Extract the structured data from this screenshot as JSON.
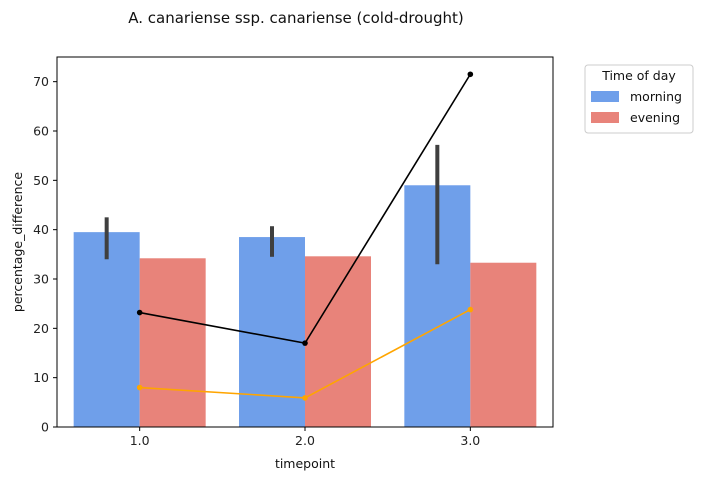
{
  "chart_data": {
    "type": "bar",
    "title": "A. canariense ssp. canariense (cold-drought)",
    "xlabel": "timepoint",
    "ylabel": "percentage_difference",
    "categories": [
      "1.0",
      "2.0",
      "3.0"
    ],
    "ylim": [
      0,
      75
    ],
    "yticks": [
      0,
      10,
      20,
      30,
      40,
      50,
      60,
      70
    ],
    "grid": false,
    "legend": {
      "title": "Time of day",
      "placement": "outside-top-right"
    },
    "series": [
      {
        "name": "morning",
        "values": [
          39.5,
          38.5,
          49.0
        ],
        "error_low": [
          34.0,
          34.5,
          33.0
        ],
        "error_high": [
          42.5,
          40.7,
          57.2
        ],
        "color": "#6f9fea"
      },
      {
        "name": "evening",
        "values": [
          34.2,
          34.6,
          33.3
        ],
        "color": "#e8837a"
      }
    ],
    "overlay_lines": [
      {
        "values": [
          23.2,
          17.0,
          71.5
        ],
        "color": "#000000"
      },
      {
        "values": [
          8.0,
          5.9,
          23.8
        ],
        "color": "#ffa500"
      }
    ]
  }
}
